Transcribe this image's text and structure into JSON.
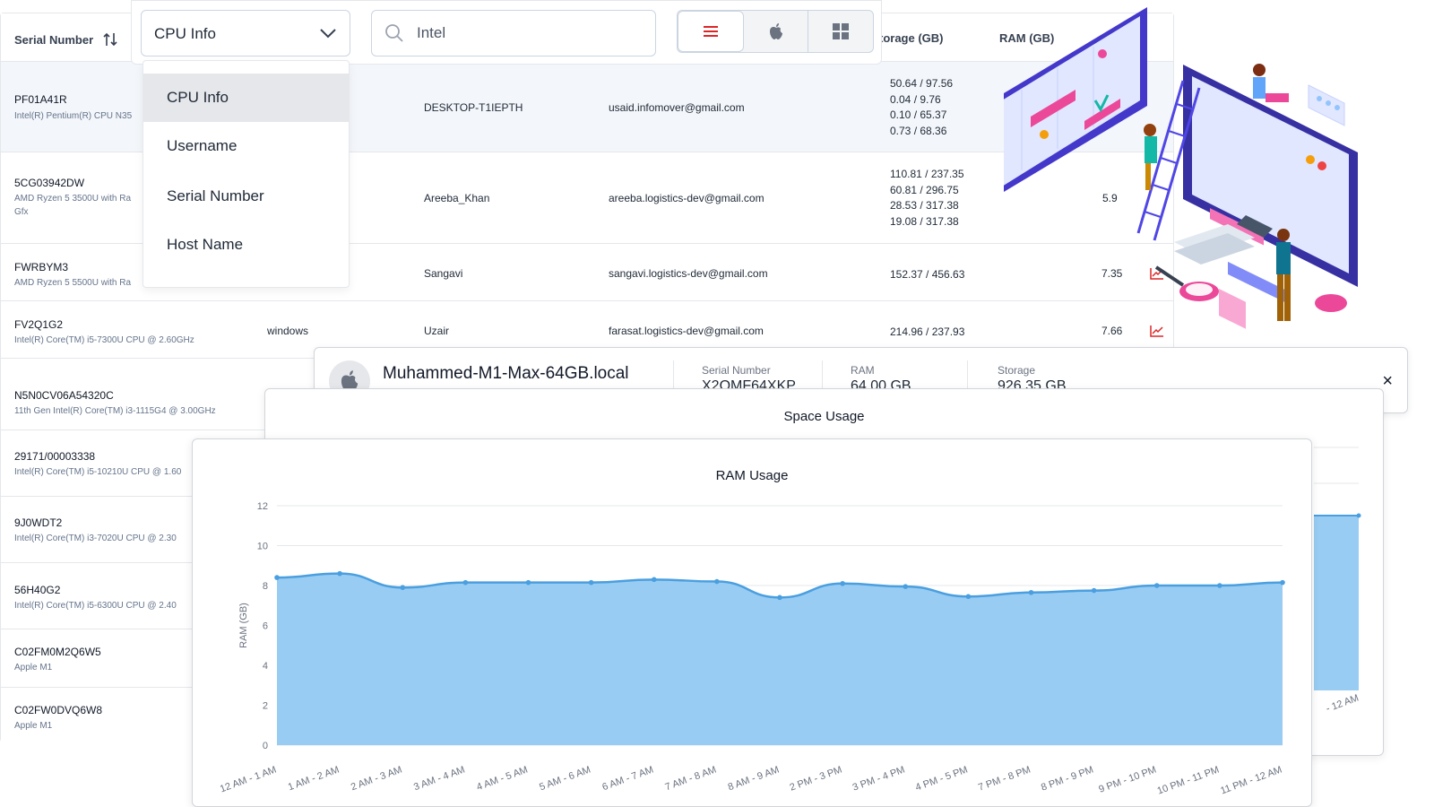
{
  "toolbar": {
    "filter_value": "CPU Info",
    "search_value": "Intel",
    "view_buttons": [
      {
        "icon": "list-icon",
        "active": true
      },
      {
        "icon": "apple-icon",
        "active": false
      },
      {
        "icon": "windows-icon",
        "active": false
      }
    ]
  },
  "filter_menu": {
    "items": [
      "CPU Info",
      "Username",
      "Serial Number",
      "Host Name"
    ],
    "selected": "CPU Info"
  },
  "table": {
    "headers": {
      "serial": "Serial Number",
      "storage": "torage (GB)",
      "ram": "RAM (GB)"
    },
    "rows": [
      {
        "serial": "PF01A41R",
        "cpu": "Intel(R) Pentium(R) CPU N35",
        "os": "",
        "user": "DESKTOP-T1IEPTH",
        "email": "usaid.infomover@gmail.com",
        "storage": [
          "50.64 / 97.56",
          "0.04 / 9.76",
          "0.10 / 65.37",
          "0.73 / 68.36"
        ],
        "ram": ""
      },
      {
        "serial": "5CG03942DW",
        "cpu": "AMD Ryzen 5 3500U with Ra",
        "cpu2": "Gfx",
        "os": "",
        "user": "Areeba_Khan",
        "email": "areeba.logistics-dev@gmail.com",
        "storage": [
          "110.81 / 237.35",
          "60.81 / 296.75",
          "28.53 / 317.38",
          "19.08 / 317.38"
        ],
        "ram": "5.9"
      },
      {
        "serial": "FWRBYM3",
        "cpu": "AMD Ryzen 5 5500U with Ra",
        "os": "",
        "user": "Sangavi",
        "email": "sangavi.logistics-dev@gmail.com",
        "storage": [
          "152.37 / 456.63"
        ],
        "ram": "7.35"
      },
      {
        "serial": "FV2Q1G2",
        "cpu": "Intel(R) Core(TM) i5-7300U CPU @ 2.60GHz",
        "os": "windows",
        "user": "Uzair",
        "email": "farasat.logistics-dev@gmail.com",
        "storage": [
          "214.96 / 237.93"
        ],
        "ram": "7.66"
      },
      {
        "serial": "N5N0CV06A54320C",
        "cpu": "11th Gen Intel(R) Core(TM) i3-1115G4 @ 3.00GHz"
      },
      {
        "serial": "29171/00003338",
        "cpu": "Intel(R) Core(TM) i5-10210U CPU @ 1.60"
      },
      {
        "serial": "9J0WDT2",
        "cpu": "Intel(R) Core(TM) i3-7020U CPU @ 2.30"
      },
      {
        "serial": "56H40G2",
        "cpu": "Intel(R) Core(TM) i5-6300U CPU @ 2.40"
      },
      {
        "serial": "C02FM0M2Q6W5",
        "cpu": "Apple M1"
      },
      {
        "serial": "C02FW0DVQ6W8",
        "cpu": "Apple M1"
      }
    ]
  },
  "device": {
    "name": "Muhammed-M1-Max-64GB.local",
    "serial_label": "Serial Number",
    "serial_value": "X2QMF64XKP",
    "ram_label": "RAM",
    "ram_value": "64.00 GB",
    "storage_label": "Storage",
    "storage_value": "926.35 GB",
    "close": "×"
  },
  "space_usage": {
    "title": "Space Usage",
    "visible_tick": "- 12 AM"
  },
  "chart_data": {
    "type": "area",
    "title": "RAM Usage",
    "xlabel": "",
    "ylabel": "RAM (GB)",
    "ylim": [
      0,
      12
    ],
    "yticks": [
      0,
      2,
      4,
      6,
      8,
      10,
      12
    ],
    "categories": [
      "12 AM - 1 AM",
      "1 AM - 2 AM",
      "2 AM - 3 AM",
      "3 AM - 4 AM",
      "4 AM - 5 AM",
      "5 AM - 6 AM",
      "6 AM - 7 AM",
      "7 AM - 8 AM",
      "8 AM - 9 AM",
      "2 PM - 3 PM",
      "3 PM - 4 PM",
      "4 PM - 5 PM",
      "7 PM - 8 PM",
      "8 PM - 9 PM",
      "9 PM - 10 PM",
      "10 PM - 11 PM",
      "11 PM - 12 AM"
    ],
    "values": [
      8.4,
      8.6,
      7.9,
      8.15,
      8.15,
      8.15,
      8.3,
      8.2,
      7.4,
      8.1,
      7.95,
      7.45,
      7.65,
      7.75,
      8.0,
      8.0,
      8.15
    ],
    "fill_color": "#99ccf2",
    "line_color": "#4a9fe0",
    "grid": true
  },
  "colors": {
    "accent_red": "#dc2626",
    "border": "#e5e7eb"
  }
}
